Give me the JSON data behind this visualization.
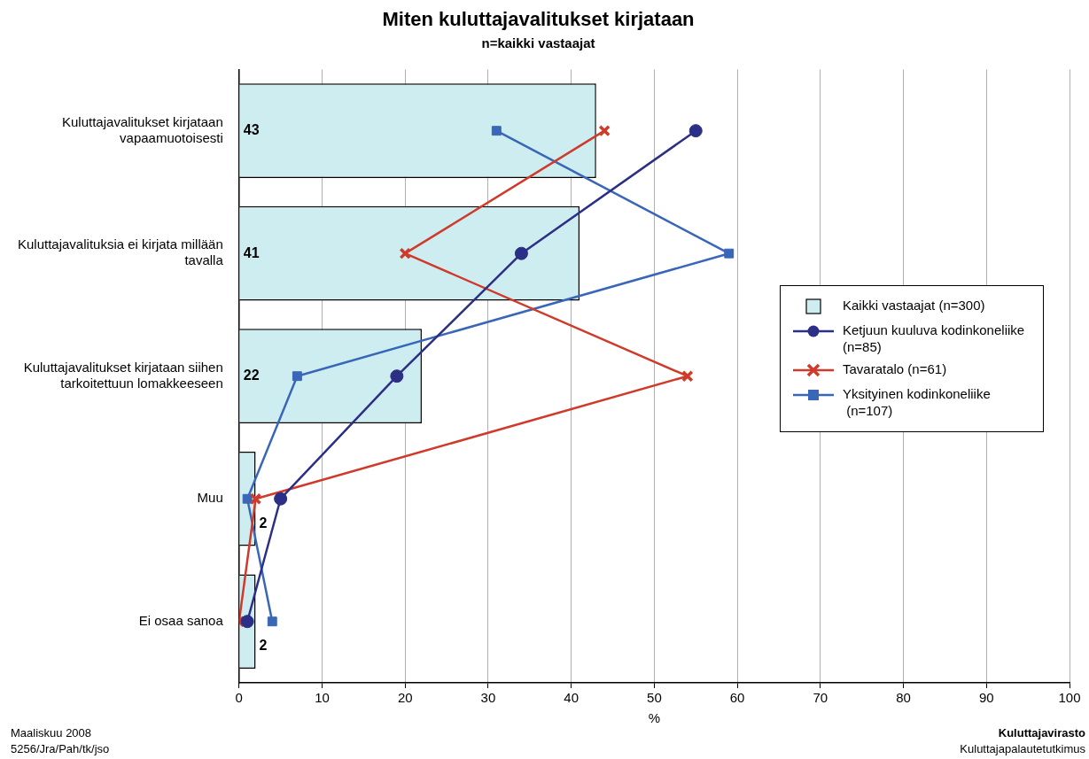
{
  "chart_data": {
    "type": "bar",
    "orientation": "horizontal",
    "title": "Miten kuluttajavalitukset kirjataan",
    "subtitle": "n=kaikki vastaajat",
    "xlabel": "%",
    "categories": [
      "Kuluttajavalitukset kirjataan vapaamuotoisesti",
      "Kuluttajavalituksia ei kirjata millään tavalla",
      "Kuluttajavalitukset kirjataan siihen tarkoitettuun lomakkeeseen",
      "Muu",
      "Ei osaa sanoa"
    ],
    "series": [
      {
        "name": "Kaikki vastaajat (n=300)",
        "color": "#cdedf0",
        "values": [
          43,
          41,
          22,
          2,
          2
        ],
        "value_labels": [
          "43",
          "41",
          "22",
          "2",
          "2"
        ]
      },
      {
        "name": "Ketjuun kuuluva kodinkoneliike (n=85)",
        "type": "line",
        "color": "#2b2f86",
        "marker": "circle",
        "values": [
          55,
          34,
          19,
          5,
          1
        ]
      },
      {
        "name": "Tavaratalo (n=61)",
        "type": "line",
        "color": "#d03a2a",
        "marker": "cross",
        "values": [
          44,
          20,
          54,
          2,
          0
        ]
      },
      {
        "name": "Yksityinen kodinkoneliike\n (n=107)",
        "type": "line",
        "color": "#3a66b8",
        "marker": "square",
        "values": [
          31,
          59,
          7,
          1,
          4
        ]
      }
    ],
    "xlim": [
      0,
      100
    ],
    "xticks": [
      0,
      10,
      20,
      30,
      40,
      50,
      60,
      70,
      80,
      90,
      100
    ],
    "grid": "x",
    "legend": "right",
    "annotations": [
      "Maaliskuu 2008",
      "5256/Jra/Pah/tk/jso",
      "Kuluttajavirasto",
      "Kuluttajapalautetutkimus"
    ]
  }
}
